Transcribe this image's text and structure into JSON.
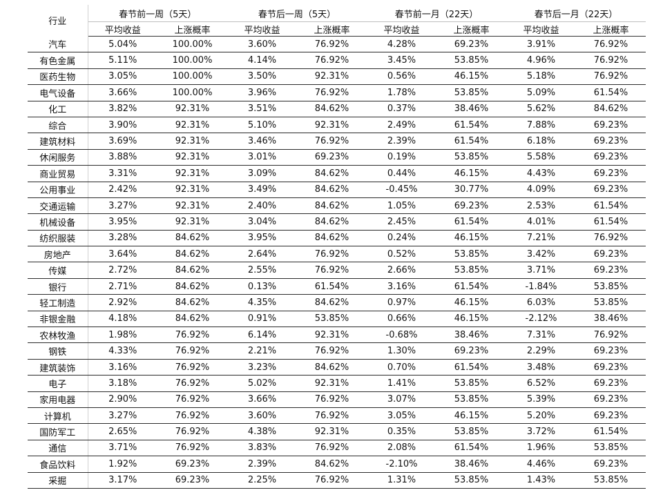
{
  "header": {
    "industry": "行业",
    "groups": [
      "春节前一周（5天）",
      "春节后一周（5天）",
      "春节前一月（22天）",
      "春节后一月（22天）"
    ],
    "sub": [
      "平均收益",
      "上涨概率"
    ]
  },
  "rows": [
    {
      "name": "汽车",
      "v": [
        "5.04%",
        "100.00%",
        "3.60%",
        "76.92%",
        "4.28%",
        "69.23%",
        "3.91%",
        "76.92%"
      ]
    },
    {
      "name": "有色金属",
      "v": [
        "5.11%",
        "100.00%",
        "4.14%",
        "76.92%",
        "3.45%",
        "53.85%",
        "4.96%",
        "76.92%"
      ]
    },
    {
      "name": "医药生物",
      "v": [
        "3.05%",
        "100.00%",
        "3.50%",
        "92.31%",
        "0.56%",
        "46.15%",
        "5.18%",
        "76.92%"
      ]
    },
    {
      "name": "电气设备",
      "v": [
        "3.66%",
        "100.00%",
        "3.96%",
        "76.92%",
        "1.78%",
        "53.85%",
        "5.09%",
        "61.54%"
      ]
    },
    {
      "name": "化工",
      "v": [
        "3.82%",
        "92.31%",
        "3.51%",
        "84.62%",
        "0.37%",
        "38.46%",
        "5.62%",
        "84.62%"
      ]
    },
    {
      "name": "综合",
      "v": [
        "3.90%",
        "92.31%",
        "5.10%",
        "92.31%",
        "2.49%",
        "61.54%",
        "7.88%",
        "69.23%"
      ]
    },
    {
      "name": "建筑材料",
      "v": [
        "3.69%",
        "92.31%",
        "3.46%",
        "76.92%",
        "2.39%",
        "61.54%",
        "6.18%",
        "69.23%"
      ]
    },
    {
      "name": "休闲服务",
      "v": [
        "3.88%",
        "92.31%",
        "3.01%",
        "69.23%",
        "0.19%",
        "53.85%",
        "5.58%",
        "69.23%"
      ]
    },
    {
      "name": "商业贸易",
      "v": [
        "3.31%",
        "92.31%",
        "3.09%",
        "84.62%",
        "0.44%",
        "46.15%",
        "4.43%",
        "69.23%"
      ]
    },
    {
      "name": "公用事业",
      "v": [
        "2.42%",
        "92.31%",
        "3.49%",
        "84.62%",
        "-0.45%",
        "30.77%",
        "4.09%",
        "69.23%"
      ]
    },
    {
      "name": "交通运输",
      "v": [
        "3.27%",
        "92.31%",
        "2.40%",
        "84.62%",
        "1.05%",
        "69.23%",
        "2.53%",
        "61.54%"
      ]
    },
    {
      "name": "机械设备",
      "v": [
        "3.95%",
        "92.31%",
        "3.04%",
        "84.62%",
        "2.45%",
        "61.54%",
        "4.01%",
        "61.54%"
      ]
    },
    {
      "name": "纺织服装",
      "v": [
        "3.28%",
        "84.62%",
        "3.95%",
        "84.62%",
        "0.24%",
        "46.15%",
        "7.21%",
        "76.92%"
      ]
    },
    {
      "name": "房地产",
      "v": [
        "3.64%",
        "84.62%",
        "2.64%",
        "76.92%",
        "0.52%",
        "53.85%",
        "3.42%",
        "69.23%"
      ]
    },
    {
      "name": "传媒",
      "v": [
        "2.72%",
        "84.62%",
        "2.55%",
        "76.92%",
        "2.66%",
        "53.85%",
        "3.71%",
        "69.23%"
      ]
    },
    {
      "name": "银行",
      "v": [
        "2.71%",
        "84.62%",
        "0.13%",
        "61.54%",
        "3.16%",
        "61.54%",
        "-1.84%",
        "53.85%"
      ]
    },
    {
      "name": "轻工制造",
      "v": [
        "2.92%",
        "84.62%",
        "4.35%",
        "84.62%",
        "0.97%",
        "46.15%",
        "6.03%",
        "53.85%"
      ]
    },
    {
      "name": "非银金融",
      "v": [
        "4.18%",
        "84.62%",
        "0.91%",
        "53.85%",
        "0.66%",
        "46.15%",
        "-2.12%",
        "38.46%"
      ]
    },
    {
      "name": "农林牧渔",
      "v": [
        "1.98%",
        "76.92%",
        "6.14%",
        "92.31%",
        "-0.68%",
        "38.46%",
        "7.31%",
        "76.92%"
      ]
    },
    {
      "name": "钢铁",
      "v": [
        "4.33%",
        "76.92%",
        "2.21%",
        "76.92%",
        "1.30%",
        "69.23%",
        "2.29%",
        "69.23%"
      ]
    },
    {
      "name": "建筑装饰",
      "v": [
        "3.16%",
        "76.92%",
        "3.23%",
        "84.62%",
        "0.70%",
        "61.54%",
        "3.48%",
        "69.23%"
      ]
    },
    {
      "name": "电子",
      "v": [
        "3.18%",
        "76.92%",
        "5.02%",
        "92.31%",
        "1.41%",
        "53.85%",
        "6.52%",
        "69.23%"
      ]
    },
    {
      "name": "家用电器",
      "v": [
        "2.90%",
        "76.92%",
        "3.66%",
        "76.92%",
        "3.07%",
        "53.85%",
        "5.39%",
        "69.23%"
      ]
    },
    {
      "name": "计算机",
      "v": [
        "3.27%",
        "76.92%",
        "3.60%",
        "76.92%",
        "3.05%",
        "46.15%",
        "5.20%",
        "69.23%"
      ]
    },
    {
      "name": "国防军工",
      "v": [
        "2.65%",
        "76.92%",
        "4.38%",
        "92.31%",
        "0.35%",
        "53.85%",
        "3.72%",
        "61.54%"
      ]
    },
    {
      "name": "通信",
      "v": [
        "3.71%",
        "76.92%",
        "3.83%",
        "76.92%",
        "2.08%",
        "61.54%",
        "1.96%",
        "53.85%"
      ]
    },
    {
      "name": "食品饮料",
      "v": [
        "1.92%",
        "69.23%",
        "2.39%",
        "84.62%",
        "-2.10%",
        "38.46%",
        "4.46%",
        "69.23%"
      ]
    },
    {
      "name": "采掘",
      "v": [
        "3.17%",
        "69.23%",
        "2.25%",
        "76.92%",
        "1.31%",
        "53.85%",
        "1.43%",
        "53.85%"
      ]
    }
  ]
}
